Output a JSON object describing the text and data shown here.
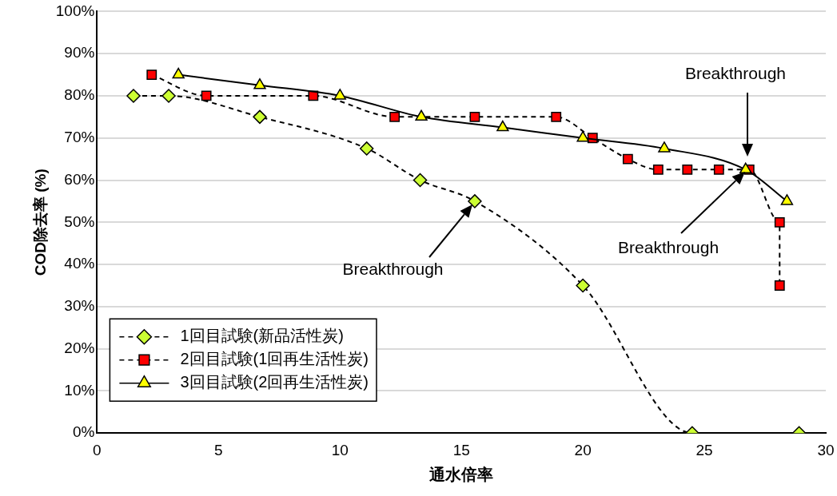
{
  "chart_data": {
    "type": "line",
    "xlabel": "通水倍率",
    "ylabel": "COD除去率 (%)",
    "xlim": [
      0,
      30
    ],
    "xticks": [
      0,
      5,
      10,
      15,
      20,
      25,
      30
    ],
    "ylim": [
      0,
      100
    ],
    "yticks": [
      {
        "value": 0,
        "label": "0%"
      },
      {
        "value": 10,
        "label": "10%"
      },
      {
        "value": 20,
        "label": "20%"
      },
      {
        "value": 30,
        "label": "30%"
      },
      {
        "value": 40,
        "label": "40%"
      },
      {
        "value": 50,
        "label": "50%"
      },
      {
        "value": 60,
        "label": "60%"
      },
      {
        "value": 70,
        "label": "70%"
      },
      {
        "value": 80,
        "label": "80%"
      },
      {
        "value": 90,
        "label": "90%"
      },
      {
        "value": 100,
        "label": "100%"
      }
    ],
    "grid": "y",
    "legend": "bottom left",
    "series": [
      {
        "name": "1回目試験(新品活性炭)",
        "color": "#ccff33",
        "marker": "diamond",
        "line_style": "dashed",
        "x": [
          1.5,
          2.95,
          6.7,
          11.1,
          13.3,
          15.55,
          20,
          24.5,
          28.9
        ],
        "values": [
          80,
          80,
          75,
          67.5,
          60,
          55,
          35,
          0,
          0
        ]
      },
      {
        "name": "2回目試験(1回再生活性炭)",
        "color": "#ff0000",
        "marker": "square",
        "line_style": "dashed",
        "x": [
          2.25,
          4.5,
          8.9,
          12.25,
          15.55,
          18.9,
          20.4,
          21.85,
          23.1,
          24.3,
          25.6,
          26.85,
          28.1,
          28.1
        ],
        "values": [
          85,
          80,
          80,
          75,
          75,
          75,
          70,
          65,
          62.5,
          62.5,
          62.5,
          62.5,
          50,
          35
        ]
      },
      {
        "name": "3回目試験(2回再生活性炭)",
        "color": "#ffff00",
        "marker": "triangle",
        "line_style": "solid",
        "x": [
          3.35,
          6.7,
          10,
          13.35,
          16.7,
          20,
          23.35,
          26.7,
          28.4
        ],
        "values": [
          85,
          82.5,
          80,
          75,
          72.5,
          70,
          67.5,
          62.5,
          55
        ]
      }
    ],
    "annotations": [
      "Breakthrough",
      "Breakthrough",
      "Breakthrough"
    ]
  }
}
